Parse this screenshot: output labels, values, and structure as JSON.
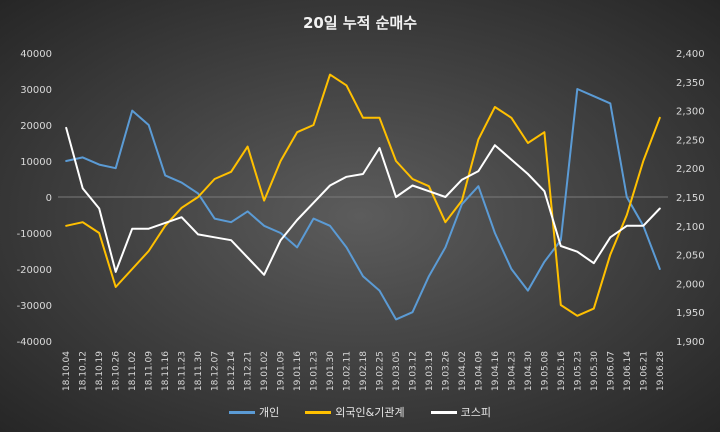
{
  "chart_data": {
    "type": "line",
    "title": "20일 누적 순매수",
    "left_axis": {
      "ticks": [
        40000,
        30000,
        20000,
        10000,
        0,
        -10000,
        -20000,
        -30000,
        -40000
      ],
      "min": -40000,
      "max": 40000
    },
    "right_axis": {
      "ticks": [
        "2,400",
        "2,350",
        "2,300",
        "2,250",
        "2,200",
        "2,150",
        "2,100",
        "2,050",
        "2,000",
        "1,950",
        "1,900"
      ],
      "min": 1900,
      "max": 2400
    },
    "x_tick_labels": [
      "18.10.04",
      "18.10.12",
      "18.10.19",
      "18.10.26",
      "18.11.02",
      "18.11.09",
      "18.11.16",
      "18.11.23",
      "18.11.30",
      "18.12.07",
      "18.12.14",
      "18.12.21",
      "19.01.02",
      "19.01.09",
      "19.01.16",
      "19.01.23",
      "19.01.30",
      "19.02.11",
      "19.02.18",
      "19.02.25",
      "19.03.05",
      "19.03.12",
      "19.03.19",
      "19.03.26",
      "19.04.02",
      "19.04.09",
      "19.04.16",
      "19.04.23",
      "19.04.30",
      "19.05.08",
      "19.05.16",
      "19.05.23",
      "19.05.30",
      "19.06.07",
      "19.06.14",
      "19.06.21",
      "19.06.28"
    ],
    "series": [
      {
        "name": "개인",
        "axis": "left",
        "color": "#5b9bd5",
        "values": [
          10000,
          11000,
          9000,
          8000,
          24000,
          20000,
          6000,
          4000,
          1000,
          -6000,
          -7000,
          -4000,
          -8000,
          -10000,
          -14000,
          -6000,
          -8000,
          -14000,
          -22000,
          -26000,
          -34000,
          -32000,
          -22000,
          -14000,
          -2000,
          3000,
          -10000,
          -20000,
          -26000,
          -18000,
          -12000,
          30000,
          28000,
          26000,
          0,
          -8000,
          -20000
        ]
      },
      {
        "name": "외국인&기관계",
        "axis": "left",
        "color": "#ffc000",
        "values": [
          -8000,
          -7000,
          -10000,
          -25000,
          -20000,
          -15000,
          -8000,
          -3000,
          0,
          5000,
          7000,
          14000,
          -1000,
          10000,
          18000,
          20000,
          34000,
          31000,
          22000,
          22000,
          10000,
          5000,
          3000,
          -7000,
          -1000,
          16000,
          25000,
          22000,
          15000,
          18000,
          -30000,
          -33000,
          -31000,
          -16000,
          -5000,
          10000,
          22000
        ]
      },
      {
        "name": "코스피",
        "axis": "right",
        "color": "#ffffff",
        "values": [
          2270,
          2165,
          2130,
          2020,
          2095,
          2095,
          2105,
          2115,
          2085,
          2080,
          2075,
          2045,
          2015,
          2075,
          2110,
          2140,
          2170,
          2185,
          2190,
          2235,
          2150,
          2170,
          2160,
          2150,
          2180,
          2195,
          2240,
          2215,
          2190,
          2160,
          2065,
          2055,
          2035,
          2080,
          2100,
          2100,
          2130
        ]
      }
    ]
  }
}
